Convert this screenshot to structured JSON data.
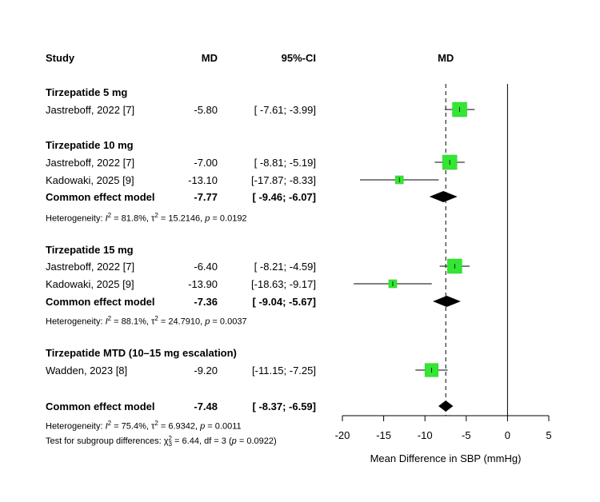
{
  "chart_data": {
    "type": "forest",
    "headers": {
      "study": "Study",
      "md": "MD",
      "ci": "95%-CI",
      "plot": "MD"
    },
    "groups": [
      {
        "title": "Tirzepatide 5 mg",
        "studies": [
          {
            "label": "Jastreboff, 2022 [7]",
            "md_text": "-5.80",
            "ci_text": "[ -7.61; -3.99]",
            "md": -5.8,
            "lo": -7.61,
            "hi": -3.99,
            "weight": 1.0
          }
        ]
      },
      {
        "title": "Tirzepatide 10 mg",
        "studies": [
          {
            "label": "Jastreboff, 2022 [7]",
            "md_text": "-7.00",
            "ci_text": "[ -8.81; -5.19]",
            "md": -7.0,
            "lo": -8.81,
            "hi": -5.19,
            "weight": 1.0
          },
          {
            "label": "Kadowaki, 2025 [9]",
            "md_text": "-13.10",
            "ci_text": "[-17.87; -8.33]",
            "md": -13.1,
            "lo": -17.87,
            "hi": -8.33,
            "weight": 0.15
          }
        ],
        "summary": {
          "label": "Common effect model",
          "md_text": "-7.77",
          "ci_text": "[ -9.46; -6.07]",
          "md": -7.77,
          "lo": -9.46,
          "hi": -6.07
        },
        "heterogeneity": {
          "prefix": "Heterogeneity: ",
          "i2": "81.8%",
          "tau2": "15.2146",
          "p": "0.0192"
        }
      },
      {
        "title": "Tirzepatide 15 mg",
        "studies": [
          {
            "label": "Jastreboff, 2022 [7]",
            "md_text": "-6.40",
            "ci_text": "[ -8.21; -4.59]",
            "md": -6.4,
            "lo": -8.21,
            "hi": -4.59,
            "weight": 1.0
          },
          {
            "label": "Kadowaki, 2025 [9]",
            "md_text": "-13.90",
            "ci_text": "[-18.63; -9.17]",
            "md": -13.9,
            "lo": -18.63,
            "hi": -9.17,
            "weight": 0.15
          }
        ],
        "summary": {
          "label": "Common effect model",
          "md_text": "-7.36",
          "ci_text": "[ -9.04; -5.67]",
          "md": -7.36,
          "lo": -9.04,
          "hi": -5.67
        },
        "heterogeneity": {
          "prefix": "Heterogeneity: ",
          "i2": "88.1%",
          "tau2": "24.7910",
          "p": "0.0037"
        }
      },
      {
        "title": "Tirzepatide MTD (10–15 mg escalation)",
        "studies": [
          {
            "label": "Wadden, 2023 [8]",
            "md_text": "-9.20",
            "ci_text": "[-11.15; -7.25]",
            "md": -9.2,
            "lo": -11.15,
            "hi": -7.25,
            "weight": 0.8
          }
        ]
      }
    ],
    "overall": {
      "label": "Common effect model",
      "md_text": "-7.48",
      "ci_text": "[ -8.37; -6.59]",
      "md": -7.48,
      "lo": -8.37,
      "hi": -6.59,
      "heterogeneity": {
        "prefix": "Heterogeneity: ",
        "i2": "75.4%",
        "tau2": "6.9342",
        "p": "0.0011"
      },
      "subgroup_test": {
        "prefix": "Test for subgroup differences: ",
        "chi2": "6.44",
        "df": "3",
        "p": "0.0922"
      }
    },
    "xlim": [
      -20,
      5
    ],
    "xticks": [
      -20,
      -15,
      -10,
      -5,
      0,
      5
    ],
    "xlabel": "Mean Difference in SBP (mmHg)",
    "null_line": 0,
    "reference_line": -7.48,
    "colors": {
      "box": "#33e633",
      "box_border": "#22cc22",
      "diamond": "#000000",
      "line": "#000000"
    }
  }
}
